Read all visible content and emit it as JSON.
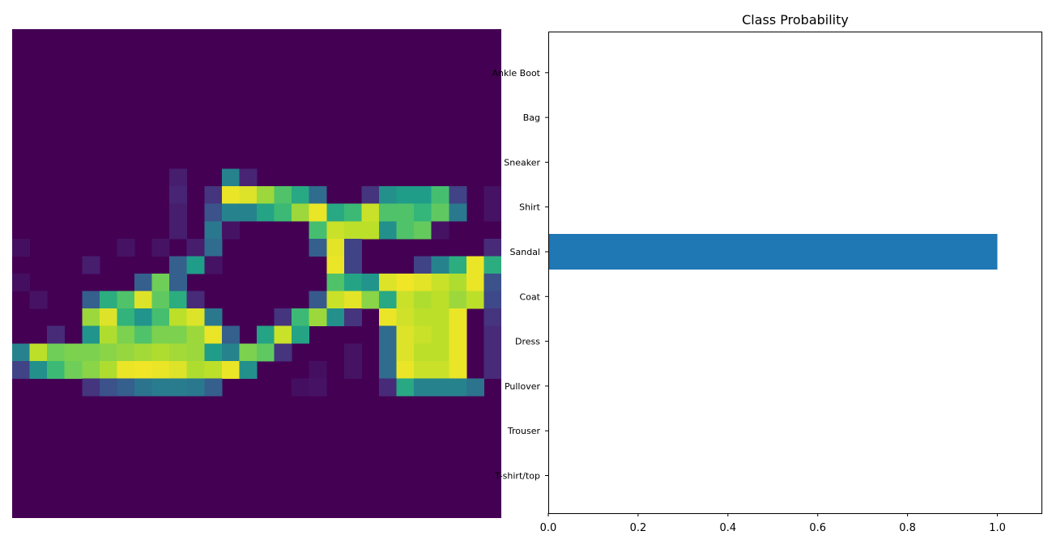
{
  "image_panel": {
    "colormap": "viridis",
    "grid_rows": 28,
    "grid_cols": 28,
    "nonzero_pixels": [
      [
        8,
        9,
        0.08
      ],
      [
        8,
        12,
        0.45
      ],
      [
        8,
        13,
        0.1
      ],
      [
        9,
        9,
        0.1
      ],
      [
        9,
        11,
        0.15
      ],
      [
        9,
        12,
        0.97
      ],
      [
        9,
        13,
        0.95
      ],
      [
        9,
        14,
        0.85
      ],
      [
        9,
        15,
        0.72
      ],
      [
        9,
        16,
        0.6
      ],
      [
        9,
        17,
        0.35
      ],
      [
        9,
        20,
        0.15
      ],
      [
        9,
        21,
        0.5
      ],
      [
        9,
        22,
        0.55
      ],
      [
        9,
        23,
        0.55
      ],
      [
        9,
        24,
        0.7
      ],
      [
        9,
        25,
        0.2
      ],
      [
        9,
        27,
        0.05
      ],
      [
        10,
        9,
        0.08
      ],
      [
        10,
        11,
        0.25
      ],
      [
        10,
        12,
        0.45
      ],
      [
        10,
        13,
        0.45
      ],
      [
        10,
        14,
        0.58
      ],
      [
        10,
        15,
        0.68
      ],
      [
        10,
        16,
        0.85
      ],
      [
        10,
        17,
        0.97
      ],
      [
        10,
        18,
        0.6
      ],
      [
        10,
        19,
        0.68
      ],
      [
        10,
        20,
        0.92
      ],
      [
        10,
        21,
        0.72
      ],
      [
        10,
        22,
        0.72
      ],
      [
        10,
        23,
        0.66
      ],
      [
        10,
        24,
        0.75
      ],
      [
        10,
        25,
        0.4
      ],
      [
        10,
        27,
        0.05
      ],
      [
        11,
        9,
        0.08
      ],
      [
        11,
        11,
        0.4
      ],
      [
        11,
        12,
        0.05
      ],
      [
        11,
        17,
        0.7
      ],
      [
        11,
        18,
        0.92
      ],
      [
        11,
        19,
        0.9
      ],
      [
        11,
        20,
        0.9
      ],
      [
        11,
        21,
        0.5
      ],
      [
        11,
        22,
        0.72
      ],
      [
        11,
        23,
        0.76
      ],
      [
        11,
        24,
        0.05
      ],
      [
        12,
        0,
        0.04
      ],
      [
        12,
        6,
        0.05
      ],
      [
        12,
        8,
        0.05
      ],
      [
        12,
        10,
        0.08
      ],
      [
        12,
        11,
        0.35
      ],
      [
        12,
        17,
        0.3
      ],
      [
        12,
        18,
        0.96
      ],
      [
        12,
        19,
        0.2
      ],
      [
        12,
        27,
        0.12
      ],
      [
        13,
        4,
        0.08
      ],
      [
        13,
        9,
        0.3
      ],
      [
        13,
        10,
        0.55
      ],
      [
        13,
        11,
        0.05
      ],
      [
        13,
        18,
        0.97
      ],
      [
        13,
        19,
        0.2
      ],
      [
        13,
        23,
        0.2
      ],
      [
        13,
        24,
        0.45
      ],
      [
        13,
        25,
        0.62
      ],
      [
        13,
        26,
        0.97
      ],
      [
        13,
        27,
        0.62
      ],
      [
        14,
        0,
        0.04
      ],
      [
        14,
        7,
        0.3
      ],
      [
        14,
        8,
        0.78
      ],
      [
        14,
        9,
        0.3
      ],
      [
        14,
        18,
        0.72
      ],
      [
        14,
        19,
        0.58
      ],
      [
        14,
        20,
        0.52
      ],
      [
        14,
        21,
        0.95
      ],
      [
        14,
        22,
        0.98
      ],
      [
        14,
        23,
        0.96
      ],
      [
        14,
        24,
        0.92
      ],
      [
        14,
        25,
        0.88
      ],
      [
        14,
        26,
        0.97
      ],
      [
        14,
        27,
        0.25
      ],
      [
        15,
        1,
        0.05
      ],
      [
        15,
        4,
        0.3
      ],
      [
        15,
        5,
        0.62
      ],
      [
        15,
        6,
        0.72
      ],
      [
        15,
        7,
        0.95
      ],
      [
        15,
        8,
        0.75
      ],
      [
        15,
        9,
        0.62
      ],
      [
        15,
        10,
        0.12
      ],
      [
        15,
        17,
        0.28
      ],
      [
        15,
        18,
        0.92
      ],
      [
        15,
        19,
        0.96
      ],
      [
        15,
        20,
        0.82
      ],
      [
        15,
        21,
        0.6
      ],
      [
        15,
        22,
        0.92
      ],
      [
        15,
        23,
        0.88
      ],
      [
        15,
        24,
        0.9
      ],
      [
        15,
        25,
        0.85
      ],
      [
        15,
        26,
        0.9
      ],
      [
        15,
        27,
        0.22
      ],
      [
        16,
        4,
        0.85
      ],
      [
        16,
        5,
        0.95
      ],
      [
        16,
        6,
        0.65
      ],
      [
        16,
        7,
        0.52
      ],
      [
        16,
        8,
        0.7
      ],
      [
        16,
        9,
        0.9
      ],
      [
        16,
        10,
        0.95
      ],
      [
        16,
        11,
        0.4
      ],
      [
        16,
        15,
        0.15
      ],
      [
        16,
        16,
        0.68
      ],
      [
        16,
        17,
        0.85
      ],
      [
        16,
        18,
        0.5
      ],
      [
        16,
        19,
        0.15
      ],
      [
        16,
        21,
        0.97
      ],
      [
        16,
        22,
        0.93
      ],
      [
        16,
        23,
        0.9
      ],
      [
        16,
        24,
        0.9
      ],
      [
        16,
        25,
        0.97
      ],
      [
        16,
        27,
        0.15
      ],
      [
        17,
        2,
        0.12
      ],
      [
        17,
        4,
        0.52
      ],
      [
        17,
        5,
        0.88
      ],
      [
        17,
        6,
        0.8
      ],
      [
        17,
        7,
        0.72
      ],
      [
        17,
        8,
        0.8
      ],
      [
        17,
        9,
        0.8
      ],
      [
        17,
        10,
        0.85
      ],
      [
        17,
        11,
        0.97
      ],
      [
        17,
        12,
        0.3
      ],
      [
        17,
        14,
        0.58
      ],
      [
        17,
        15,
        0.92
      ],
      [
        17,
        16,
        0.58
      ],
      [
        17,
        21,
        0.35
      ],
      [
        17,
        22,
        0.95
      ],
      [
        17,
        23,
        0.92
      ],
      [
        17,
        24,
        0.9
      ],
      [
        17,
        25,
        0.97
      ],
      [
        17,
        27,
        0.12
      ],
      [
        18,
        0,
        0.45
      ],
      [
        18,
        1,
        0.9
      ],
      [
        18,
        2,
        0.78
      ],
      [
        18,
        3,
        0.8
      ],
      [
        18,
        4,
        0.8
      ],
      [
        18,
        5,
        0.82
      ],
      [
        18,
        6,
        0.84
      ],
      [
        18,
        7,
        0.86
      ],
      [
        18,
        8,
        0.88
      ],
      [
        18,
        9,
        0.86
      ],
      [
        18,
        10,
        0.85
      ],
      [
        18,
        11,
        0.55
      ],
      [
        18,
        12,
        0.45
      ],
      [
        18,
        13,
        0.8
      ],
      [
        18,
        14,
        0.75
      ],
      [
        18,
        15,
        0.15
      ],
      [
        18,
        19,
        0.05
      ],
      [
        18,
        21,
        0.35
      ],
      [
        18,
        22,
        0.95
      ],
      [
        18,
        23,
        0.9
      ],
      [
        18,
        24,
        0.9
      ],
      [
        18,
        25,
        0.97
      ],
      [
        18,
        27,
        0.12
      ],
      [
        19,
        0,
        0.2
      ],
      [
        19,
        1,
        0.5
      ],
      [
        19,
        2,
        0.68
      ],
      [
        19,
        3,
        0.78
      ],
      [
        19,
        4,
        0.82
      ],
      [
        19,
        5,
        0.88
      ],
      [
        19,
        6,
        0.97
      ],
      [
        19,
        7,
        0.98
      ],
      [
        19,
        8,
        0.97
      ],
      [
        19,
        9,
        0.95
      ],
      [
        19,
        10,
        0.88
      ],
      [
        19,
        11,
        0.9
      ],
      [
        19,
        12,
        0.97
      ],
      [
        19,
        13,
        0.5
      ],
      [
        19,
        17,
        0.04
      ],
      [
        19,
        19,
        0.05
      ],
      [
        19,
        21,
        0.35
      ],
      [
        19,
        22,
        0.97
      ],
      [
        19,
        23,
        0.92
      ],
      [
        19,
        24,
        0.92
      ],
      [
        19,
        25,
        0.97
      ],
      [
        19,
        27,
        0.12
      ],
      [
        20,
        4,
        0.15
      ],
      [
        20,
        5,
        0.25
      ],
      [
        20,
        6,
        0.3
      ],
      [
        20,
        7,
        0.38
      ],
      [
        20,
        8,
        0.42
      ],
      [
        20,
        9,
        0.42
      ],
      [
        20,
        10,
        0.4
      ],
      [
        20,
        11,
        0.3
      ],
      [
        20,
        16,
        0.04
      ],
      [
        20,
        17,
        0.05
      ],
      [
        20,
        21,
        0.12
      ],
      [
        20,
        22,
        0.6
      ],
      [
        20,
        23,
        0.45
      ],
      [
        20,
        24,
        0.45
      ],
      [
        20,
        25,
        0.45
      ],
      [
        20,
        26,
        0.38
      ]
    ]
  },
  "chart_data": {
    "type": "bar",
    "orientation": "horizontal",
    "title": "Class Probability",
    "xlabel": "",
    "ylabel": "",
    "categories": [
      "T-shirt/top",
      "Trouser",
      "Pullover",
      "Dress",
      "Coat",
      "Sandal",
      "Shirt",
      "Sneaker",
      "Bag",
      "Ankle Boot"
    ],
    "values": [
      0,
      0,
      0,
      0,
      0,
      1.0,
      0,
      0,
      0,
      0
    ],
    "xlim": [
      0,
      1.1
    ],
    "xticks": [
      "0.0",
      "0.2",
      "0.4",
      "0.6",
      "0.8",
      "1.0"
    ],
    "grid": false,
    "bar_color": "#1f77b4"
  }
}
